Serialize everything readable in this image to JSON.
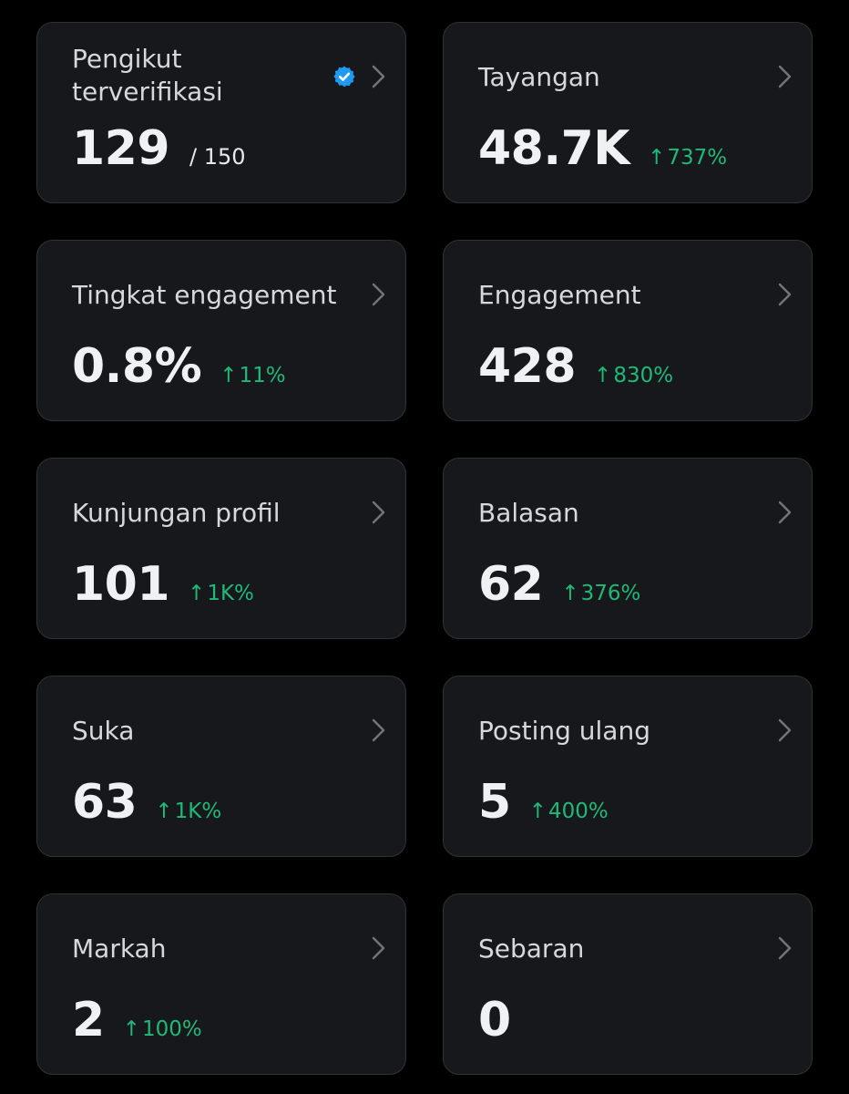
{
  "colors": {
    "background": "#000000",
    "card": "#16181c",
    "card_border": "#2f3336",
    "positive": "#1fb978",
    "verified_badge": "#1d9bf0"
  },
  "icons": {
    "chevron": "chevron-right-icon",
    "verified": "verified-badge-icon",
    "trend": "arrow-up-icon"
  },
  "cards": [
    {
      "title": "Pengikut terverifikasi",
      "value": "129",
      "total": "/ 150",
      "verified": true
    },
    {
      "title": "Tayangan",
      "value": "48.7K",
      "arrow": "↑",
      "delta": "737%"
    },
    {
      "title": "Tingkat engagement",
      "value": "0.8%",
      "arrow": "↑",
      "delta": "11%"
    },
    {
      "title": "Engagement",
      "value": "428",
      "arrow": "↑",
      "delta": "830%"
    },
    {
      "title": "Kunjungan profil",
      "value": "101",
      "arrow": "↑",
      "delta": "1K%"
    },
    {
      "title": "Balasan",
      "value": "62",
      "arrow": "↑",
      "delta": "376%"
    },
    {
      "title": "Suka",
      "value": "63",
      "arrow": "↑",
      "delta": "1K%"
    },
    {
      "title": "Posting ulang",
      "value": "5",
      "arrow": "↑",
      "delta": "400%"
    },
    {
      "title": "Markah",
      "value": "2",
      "arrow": "↑",
      "delta": "100%"
    },
    {
      "title": "Sebaran",
      "value": "0"
    }
  ]
}
